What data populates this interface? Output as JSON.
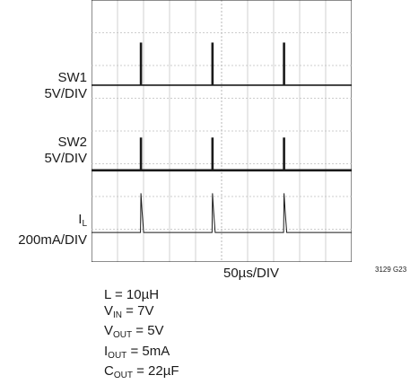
{
  "chart_data": {
    "type": "line",
    "x_divisions": 10,
    "y_divisions": 8,
    "xlabel": "50µs/DIV",
    "figure_id": "3129 G23",
    "switch_period_divs": 2.75,
    "series": [
      {
        "name": "SW1",
        "label_line1": "SW1",
        "label_line2": "5V/DIV",
        "baseline_div": 2.6,
        "pulse_height_div": 1.3,
        "pulse_x_divs": [
          1.9,
          4.65,
          7.4
        ],
        "pulse_width_divs": 0.09
      },
      {
        "name": "SW2",
        "label_line1": "SW2",
        "label_line2": "5V/DIV",
        "baseline_div": 5.2,
        "pulse_height_div": 1.0,
        "pulse_x_divs": [
          1.9,
          4.65,
          7.4
        ],
        "pulse_width_divs": 0.09
      },
      {
        "name": "IL",
        "label_main": "I",
        "label_sub": "L",
        "label_line2": "200mA/DIV",
        "baseline_div": 7.1,
        "spike_height_div": 1.2,
        "pulse_x_divs": [
          1.9,
          4.65,
          7.4
        ]
      }
    ]
  },
  "conditions": [
    {
      "main": "L = 10µH",
      "sub": "",
      "rest": ""
    },
    {
      "main": "V",
      "sub": "IN",
      "rest": " = 7V"
    },
    {
      "main": "V",
      "sub": "OUT",
      "rest": " = 5V"
    },
    {
      "main": "I",
      "sub": "OUT",
      "rest": " = 5mA"
    },
    {
      "main": "C",
      "sub": "OUT",
      "rest": " = 22µF"
    }
  ]
}
